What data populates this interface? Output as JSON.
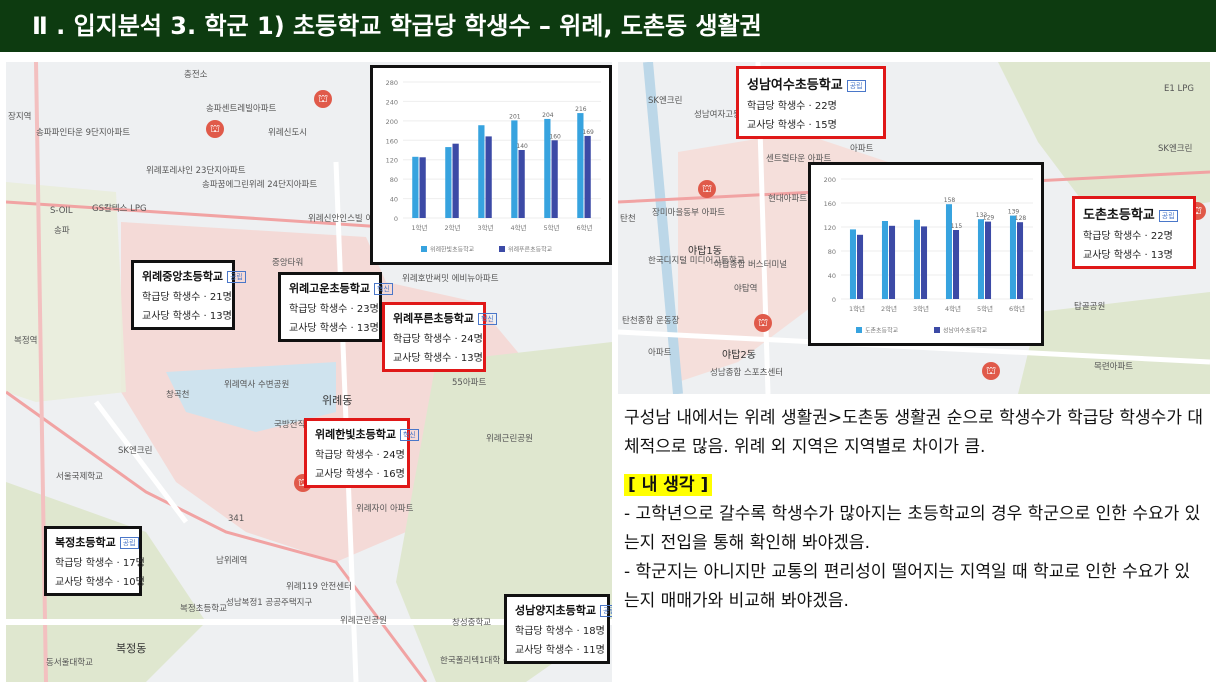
{
  "header": {
    "title": "Ⅱ . 입지분석 3. 학군 1) 초등학교 학급당 학생수 – 위례, 도촌동 생활권"
  },
  "left_map": {
    "labels": [
      "장지역",
      "송파파인타운 9단지아파트",
      "충전소",
      "송파센트레빌아파트",
      "위례신도시",
      "위례포레샤인 23단지아파트",
      "송파꿈에그린위례 24단지아파트",
      "S-OIL",
      "GS칼텍스 LPG",
      "송파",
      "위례신안인스빌 아스트로아파트",
      "중앙타워",
      "복정역",
      "위례호반써밋 에비뉴아파트",
      "위례동",
      "55아파트",
      "창곡천",
      "위례역사 수변공원",
      "국방전직 교육원",
      "위례근린공원",
      "SK엔크린",
      "서울국제학교",
      "복정초등학교",
      "남위례역",
      "341",
      "위례자이 아파트",
      "성남복정1 공공주택지구",
      "위례119 안전센터",
      "복정동",
      "동서울대학교",
      "위례근린공원",
      "창성중학교",
      "한국폴리텍1대학 성남캠퍼스"
    ],
    "schools": [
      {
        "name": "위례중앙초등학교",
        "tag": "공립",
        "per_class": "학급당 학생수 · 21명",
        "per_teacher": "교사당 학생수 · 13명"
      },
      {
        "name": "위례고운초등학교",
        "tag": "혁신",
        "per_class": "학급당 학생수 · 23명",
        "per_teacher": "교사당 학생수 · 13명"
      },
      {
        "name": "위례푸른초등학교",
        "tag": "혁신",
        "per_class": "학급당 학생수 · 24명",
        "per_teacher": "교사당 학생수 · 13명"
      },
      {
        "name": "위례한빛초등학교",
        "tag": "혁신",
        "per_class": "학급당 학생수 · 24명",
        "per_teacher": "교사당 학생수 · 16명"
      },
      {
        "name": "복정초등학교",
        "tag": "공립",
        "per_class": "학급당 학생수 · 17명",
        "per_teacher": "교사당 학생수 · 10명"
      },
      {
        "name": "성남양지초등학교",
        "tag": "공립",
        "per_class": "학급당 학생수 · 18명",
        "per_teacher": "교사당 학생수 · 11명"
      }
    ]
  },
  "right_map": {
    "labels": [
      "SK엔크린",
      "성남여자고등학교",
      "E1 LPG",
      "SK엔크린",
      "센트럴타운 아파트",
      "장미마을동부 아파트",
      "야탑1동",
      "야탑종합 버스터미널",
      "야탑역",
      "한국디지털 미디어고등학교",
      "탄천",
      "탄천종합 운동장",
      "야탑2동",
      "성남종합 스포츠센터",
      "아파트",
      "현대아파트",
      "아파트",
      "탑골공원",
      "목련아파트"
    ],
    "schools": [
      {
        "name": "성남여수초등학교",
        "tag": "공립",
        "per_class": "학급당 학생수 · 22명",
        "per_teacher": "교사당 학생수 · 15명"
      },
      {
        "name": "도촌초등학교",
        "tag": "공립",
        "per_class": "학급당 학생수 · 22명",
        "per_teacher": "교사당 학생수 · 13명"
      }
    ]
  },
  "chart_data": [
    {
      "type": "bar",
      "categories": [
        "1학년",
        "2학년",
        "3학년",
        "4학년",
        "5학년",
        "6학년"
      ],
      "series": [
        {
          "name": "위례한빛초등학교",
          "values": [
            126,
            146,
            191,
            201,
            204,
            216
          ],
          "color": "#37a3df"
        },
        {
          "name": "위례푸른초등학교",
          "values": [
            125,
            153,
            168,
            140,
            160,
            169
          ],
          "color": "#3c4aa6"
        }
      ],
      "data_labels": {
        "0": [
          "",
          "",
          "",
          "201",
          "204",
          "216"
        ],
        "1": [
          "",
          "",
          "",
          "140",
          "160",
          "169"
        ]
      },
      "yticks": [
        0,
        40,
        80,
        120,
        160,
        200,
        240,
        280
      ],
      "ylim": [
        0,
        280
      ],
      "legend": "bottom"
    },
    {
      "type": "bar",
      "categories": [
        "1학년",
        "2학년",
        "3학년",
        "4학년",
        "5학년",
        "6학년"
      ],
      "series": [
        {
          "name": "도촌초등학교",
          "values": [
            116,
            130,
            132,
            158,
            133,
            139
          ],
          "color": "#37a3df"
        },
        {
          "name": "성남여수초등학교",
          "values": [
            107,
            122,
            121,
            115,
            129,
            128
          ],
          "color": "#3c4aa6"
        }
      ],
      "data_labels": {
        "0": [
          "",
          "",
          "",
          "158",
          "133",
          "139"
        ],
        "1": [
          "",
          "",
          "",
          "115",
          "129",
          "128"
        ]
      },
      "yticks": [
        0,
        40,
        80,
        120,
        160,
        200
      ],
      "ylim": [
        0,
        200
      ],
      "legend": "bottom"
    }
  ],
  "text": {
    "summary": "구성남 내에서는 위례 생활권>도촌동 생활권 순으로 학생수가 학급당 학생수가 대체적으로 많음. 위례 외 지역은 지역별로 차이가 큼.",
    "thought_title": "[ 내 생각 ]",
    "thought_1": "- 고학년으로 갈수록 학생수가 많아지는 초등학교의 경우 학군으로 인한 수요가 있는지 전입을 통해 확인해 봐야겠음.",
    "thought_2": "- 학군지는 아니지만 교통의 편리성이 떨어지는 지역일 때 학교로 인한 수요가 있는지 매매가와 비교해 봐야겠음."
  },
  "colors": {
    "header_bg": "#0d3b10",
    "highlight": "#ffff00",
    "red_border": "#e01818",
    "bar_light": "#37a3df",
    "bar_dark": "#3c4aa6"
  },
  "icons": [
    "school-pin-icon"
  ]
}
